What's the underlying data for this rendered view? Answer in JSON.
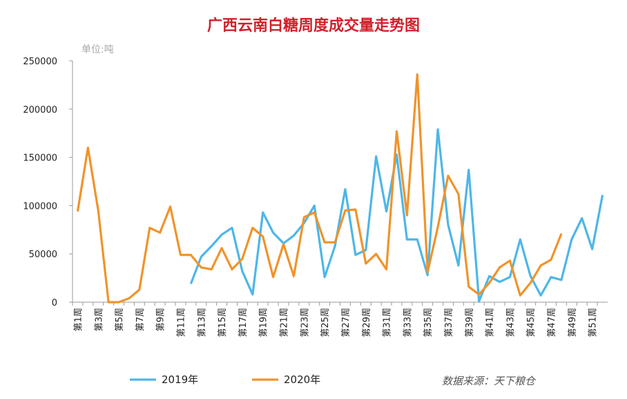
{
  "chart_data": {
    "type": "line",
    "title": "广西云南白糖周度成交量走势图",
    "unit_label": "单位:吨",
    "source": "数据来源：天下粮仓",
    "categories": [
      "第1周",
      null,
      "第3周",
      null,
      "第5周",
      null,
      "第7周",
      null,
      "第9周",
      null,
      "第11周",
      null,
      "第13周",
      null,
      "第15周",
      null,
      "第17周",
      null,
      "第19周",
      null,
      "第21周",
      null,
      "第23周",
      null,
      "第25周",
      null,
      "第27周",
      null,
      "第29周",
      null,
      "第31周",
      null,
      "第33周",
      null,
      "第35周",
      null,
      "第37周",
      null,
      "第39周",
      null,
      "第41周",
      null,
      "第43周",
      null,
      "第45周",
      null,
      "第47周",
      null,
      "第49周",
      null,
      "第51周",
      null
    ],
    "series": [
      {
        "name": "2019年",
        "color": "#4db6e8",
        "values": [
          null,
          null,
          null,
          null,
          null,
          null,
          null,
          null,
          null,
          null,
          null,
          19000,
          47000,
          58000,
          70000,
          77000,
          32000,
          8000,
          93000,
          72000,
          61000,
          69000,
          82000,
          100000,
          26000,
          58000,
          117000,
          49000,
          54000,
          151000,
          94000,
          153000,
          65000,
          65000,
          28000,
          179000,
          80000,
          38000,
          137000,
          1000,
          27000,
          21000,
          26000,
          65000,
          27000,
          7000,
          26000,
          23000,
          65000,
          87000,
          55000,
          111000
        ]
      },
      {
        "name": "2020年",
        "color": "#f0932b",
        "values": [
          94000,
          160000,
          95000,
          0,
          0,
          4000,
          13000,
          77000,
          72000,
          99000,
          49000,
          49000,
          36000,
          34000,
          56000,
          34000,
          45000,
          77000,
          68000,
          26000,
          60000,
          27000,
          88000,
          93000,
          62000,
          62000,
          95000,
          96000,
          40000,
          50000,
          34000,
          177000,
          90000,
          236000,
          31000,
          78000,
          131000,
          112000,
          16000,
          8000,
          20000,
          36000,
          43000,
          7000,
          20000,
          38000,
          44000,
          71000,
          null,
          null,
          null,
          null
        ]
      }
    ],
    "ylim": [
      0,
      250000
    ],
    "yticks": [
      0,
      50000,
      100000,
      150000,
      200000,
      250000
    ],
    "grid": false
  }
}
